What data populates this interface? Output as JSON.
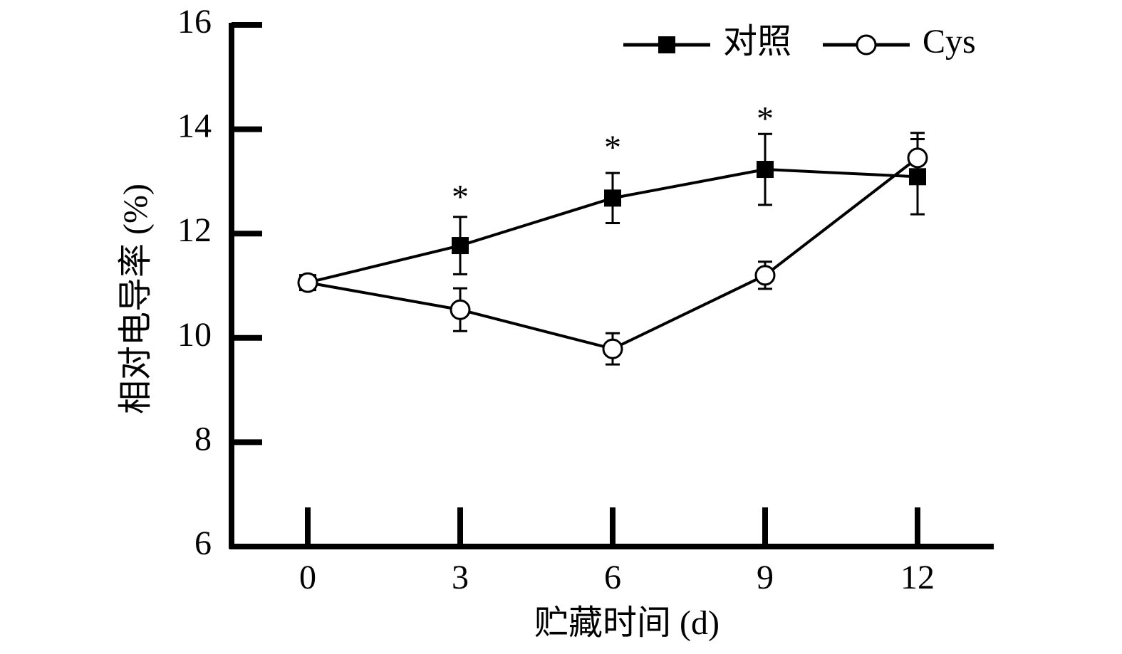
{
  "chart_data": {
    "type": "line",
    "x_label": "贮藏时间 (d)",
    "y_label": "相对电导率 (%)",
    "x": [
      0,
      3,
      6,
      9,
      12
    ],
    "series": [
      {
        "name": "对照",
        "color": "#000000",
        "marker": "filled-square",
        "values": [
          11.06,
          11.77,
          12.68,
          13.23,
          13.09
        ],
        "errors": [
          0.1,
          0.55,
          0.48,
          0.68,
          0.72
        ]
      },
      {
        "name": "Cys",
        "color": "#000000",
        "marker": "open-circle",
        "values": [
          11.06,
          10.54,
          9.79,
          11.2,
          13.45
        ],
        "errors": [
          0.1,
          0.41,
          0.3,
          0.26,
          0.48
        ]
      }
    ],
    "annotations": [
      {
        "text": "*",
        "x": 3,
        "y": 12.8
      },
      {
        "text": "*",
        "x": 6,
        "y": 13.75
      },
      {
        "text": "*",
        "x": 9,
        "y": 14.3
      }
    ],
    "xlim": [
      -1.5,
      13.5
    ],
    "xticks": [
      0,
      3,
      6,
      9,
      12
    ],
    "ylim": [
      6,
      16
    ],
    "yticks": [
      6,
      8,
      10,
      12,
      14,
      16
    ],
    "legend": "top-right",
    "grid": false
  }
}
